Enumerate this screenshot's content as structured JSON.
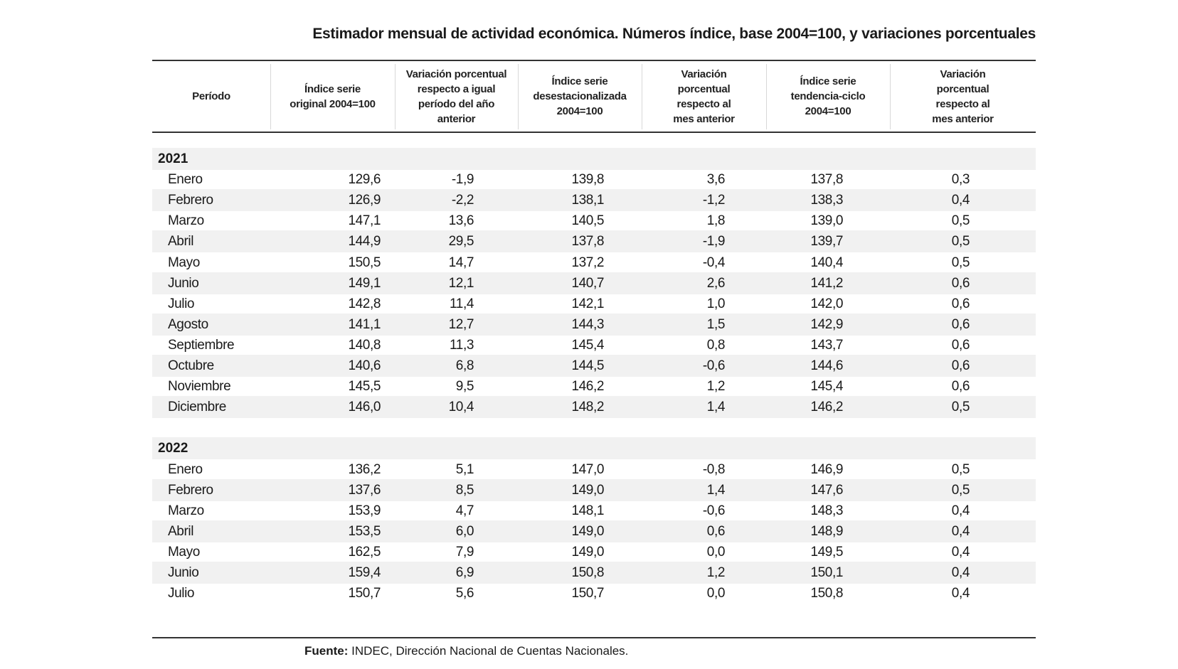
{
  "title": "Estimador mensual de actividad económica. Números índice, base 2004=100, y variaciones porcentuales",
  "columns": [
    "Período",
    "Índice serie\noriginal 2004=100",
    "Variación porcentual\nrespecto a igual\nperíodo del año\nanterior",
    "Índice serie\ndesestacionalizada\n2004=100",
    "Variación\nporcentual\nrespecto al\nmes anterior",
    "Índice serie\ntendencia-ciclo\n2004=100",
    "Variación\nporcentual\nrespecto al\nmes anterior"
  ],
  "groups": [
    {
      "year": "2021",
      "rows": [
        [
          "Enero",
          "129,6",
          "-1,9",
          "139,8",
          "3,6",
          "137,8",
          "0,3"
        ],
        [
          "Febrero",
          "126,9",
          "-2,2",
          "138,1",
          "-1,2",
          "138,3",
          "0,4"
        ],
        [
          "Marzo",
          "147,1",
          "13,6",
          "140,5",
          "1,8",
          "139,0",
          "0,5"
        ],
        [
          "Abril",
          "144,9",
          "29,5",
          "137,8",
          "-1,9",
          "139,7",
          "0,5"
        ],
        [
          "Mayo",
          "150,5",
          "14,7",
          "137,2",
          "-0,4",
          "140,4",
          "0,5"
        ],
        [
          "Junio",
          "149,1",
          "12,1",
          "140,7",
          "2,6",
          "141,2",
          "0,6"
        ],
        [
          "Julio",
          "142,8",
          "11,4",
          "142,1",
          "1,0",
          "142,0",
          "0,6"
        ],
        [
          "Agosto",
          "141,1",
          "12,7",
          "144,3",
          "1,5",
          "142,9",
          "0,6"
        ],
        [
          "Septiembre",
          "140,8",
          "11,3",
          "145,4",
          "0,8",
          "143,7",
          "0,6"
        ],
        [
          "Octubre",
          "140,6",
          "6,8",
          "144,5",
          "-0,6",
          "144,6",
          "0,6"
        ],
        [
          "Noviembre",
          "145,5",
          "9,5",
          "146,2",
          "1,2",
          "145,4",
          "0,6"
        ],
        [
          "Diciembre",
          "146,0",
          "10,4",
          "148,2",
          "1,4",
          "146,2",
          "0,5"
        ]
      ]
    },
    {
      "year": "2022",
      "rows": [
        [
          "Enero",
          "136,2",
          "5,1",
          "147,0",
          "-0,8",
          "146,9",
          "0,5"
        ],
        [
          "Febrero",
          "137,6",
          "8,5",
          "149,0",
          "1,4",
          "147,6",
          "0,5"
        ],
        [
          "Marzo",
          "153,9",
          "4,7",
          "148,1",
          "-0,6",
          "148,3",
          "0,4"
        ],
        [
          "Abril",
          "153,5",
          "6,0",
          "149,0",
          "0,6",
          "148,9",
          "0,4"
        ],
        [
          "Mayo",
          "162,5",
          "7,9",
          "149,0",
          "0,0",
          "149,5",
          "0,4"
        ],
        [
          "Junio",
          "159,4",
          "6,9",
          "150,8",
          "1,2",
          "150,1",
          "0,4"
        ],
        [
          "Julio",
          "150,7",
          "5,6",
          "150,7",
          "0,0",
          "150,8",
          "0,4"
        ]
      ]
    }
  ],
  "footer": {
    "label": "Fuente:",
    "text": " INDEC, Dirección Nacional de Cuentas Nacionales."
  }
}
